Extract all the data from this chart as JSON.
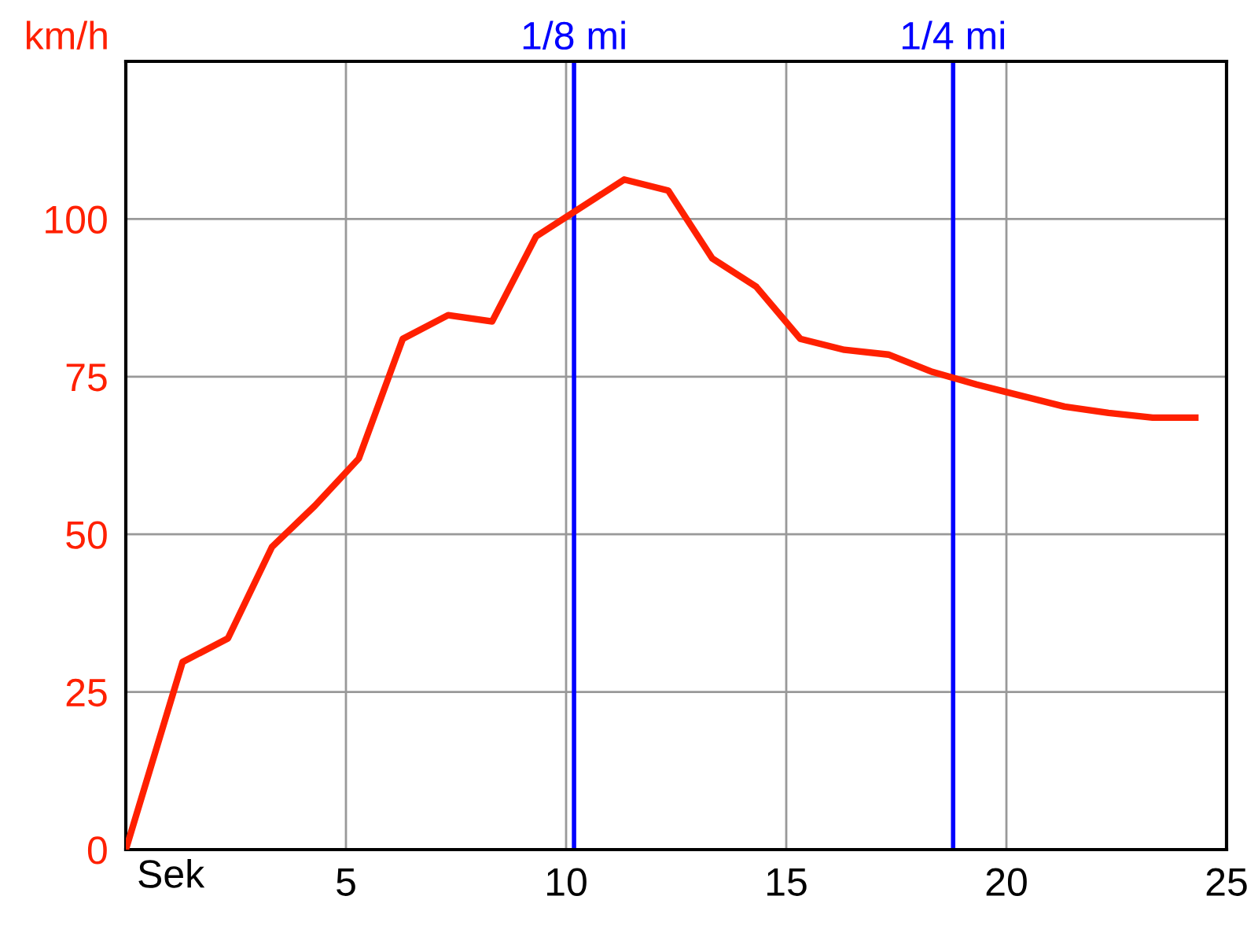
{
  "chart_data": {
    "type": "line",
    "xlabel": "Sek",
    "ylabel": "km/h",
    "x": [
      0,
      1.29,
      2.32,
      3.32,
      4.29,
      5.29,
      6.29,
      7.32,
      8.32,
      9.32,
      11.32,
      12.32,
      13.32,
      14.32,
      15.32,
      16.32,
      17.32,
      18.32,
      19.32,
      20.32,
      21.32,
      22.32,
      23.32,
      24.29
    ],
    "series": [
      {
        "color": "#ff2000",
        "values": [
          0,
          29.75,
          33.5,
          48,
          54.5,
          62,
          81,
          84.75,
          83.75,
          97.25,
          106.25,
          104.5,
          93.75,
          89.25,
          81,
          79.25,
          78.5,
          75.75,
          73.75,
          72,
          70.25,
          69.25,
          68.5,
          68.5
        ]
      }
    ],
    "xlim": [
      0,
      25
    ],
    "xticks": [
      5,
      10,
      15,
      20,
      25
    ],
    "ylim": [
      0,
      125
    ],
    "yticks": [
      0,
      25,
      50,
      75,
      100,
      {
        "value": 125,
        "label": null
      }
    ],
    "grid": true,
    "marker": "none",
    "line_style": "solid",
    "ref_lines": [
      {
        "axis": "x",
        "value": 10.18,
        "label": "1/8 mi",
        "color": "#0000ff"
      },
      {
        "axis": "x",
        "value": 18.79,
        "label": "1/4 mi",
        "color": "#0000ff"
      }
    ]
  }
}
